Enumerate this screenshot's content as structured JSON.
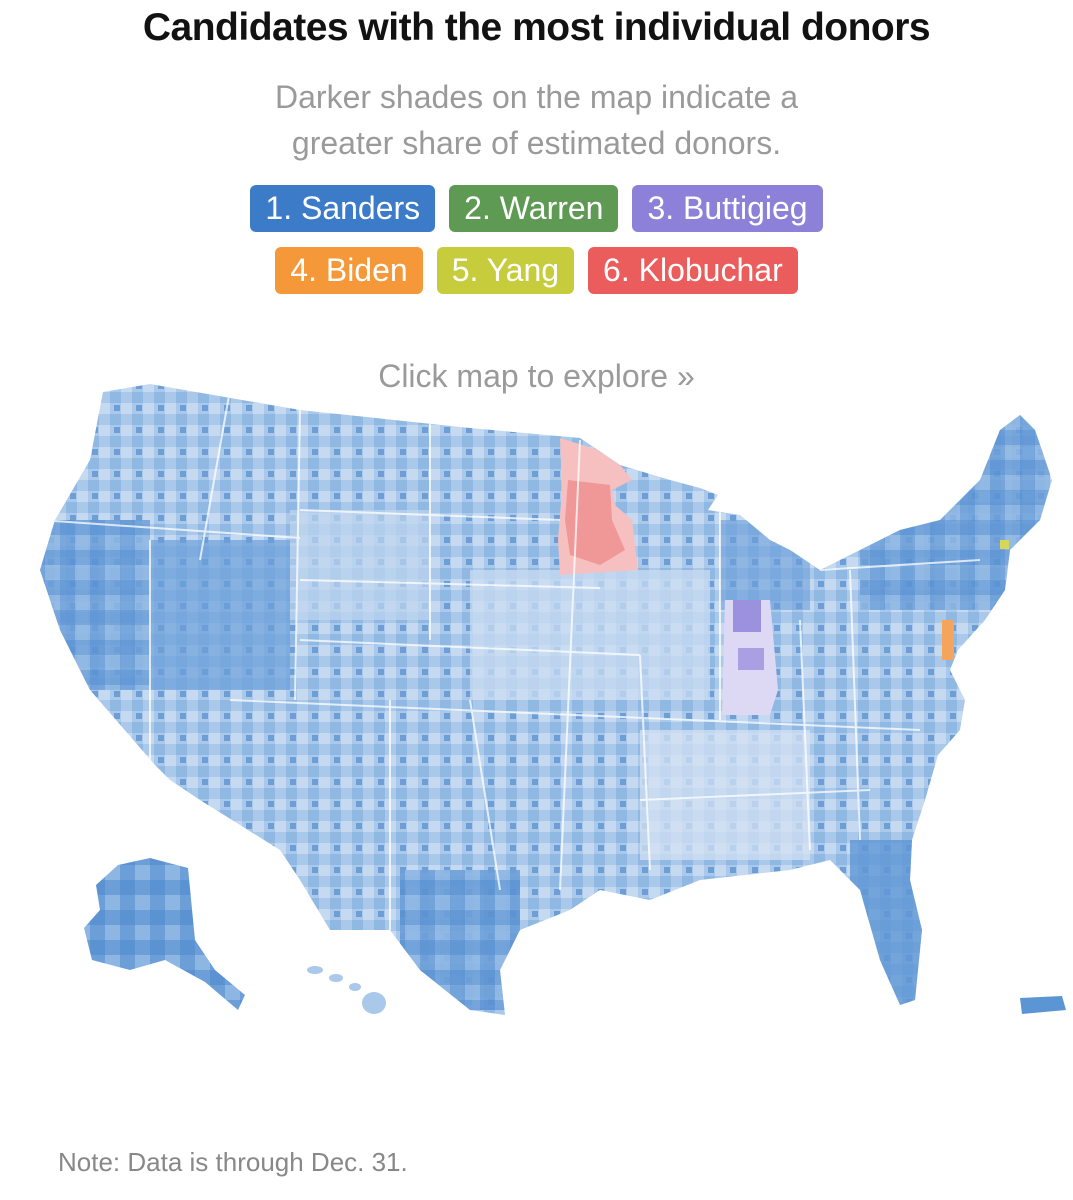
{
  "header": {
    "title": "Candidates with the most individual donors",
    "subtitle_line1": "Darker shades on the map indicate a",
    "subtitle_line2": "greater share of estimated donors."
  },
  "legend": {
    "row1": [
      {
        "label": "1. Sanders",
        "color": "#3b7bc8",
        "name": "legend-sanders"
      },
      {
        "label": "2. Warren",
        "color": "#5e9a54",
        "name": "legend-warren"
      },
      {
        "label": "3. Buttigieg",
        "color": "#8c80d8",
        "name": "legend-buttigieg"
      }
    ],
    "row2": [
      {
        "label": "4. Biden",
        "color": "#f4983a",
        "name": "legend-biden"
      },
      {
        "label": "5. Yang",
        "color": "#c7cc3c",
        "name": "legend-yang"
      },
      {
        "label": "6. Klobuchar",
        "color": "#eb5c5c",
        "name": "legend-klobuchar"
      }
    ]
  },
  "map": {
    "prompt": "Click map to explore »",
    "colors": {
      "sanders_light": "#c7d9f0",
      "sanders_mid": "#9cc0e6",
      "sanders_dark": "#5b95d3",
      "klobuchar": "#f5a7a7",
      "klobuchar_dark": "#ee8585",
      "buttigieg": "#b9b2ea",
      "buttigieg_dark": "#9a90de",
      "biden": "#f6b26b",
      "state_border": "#ffffff"
    }
  },
  "footer": {
    "note": "Note: Data is through Dec. 31."
  }
}
